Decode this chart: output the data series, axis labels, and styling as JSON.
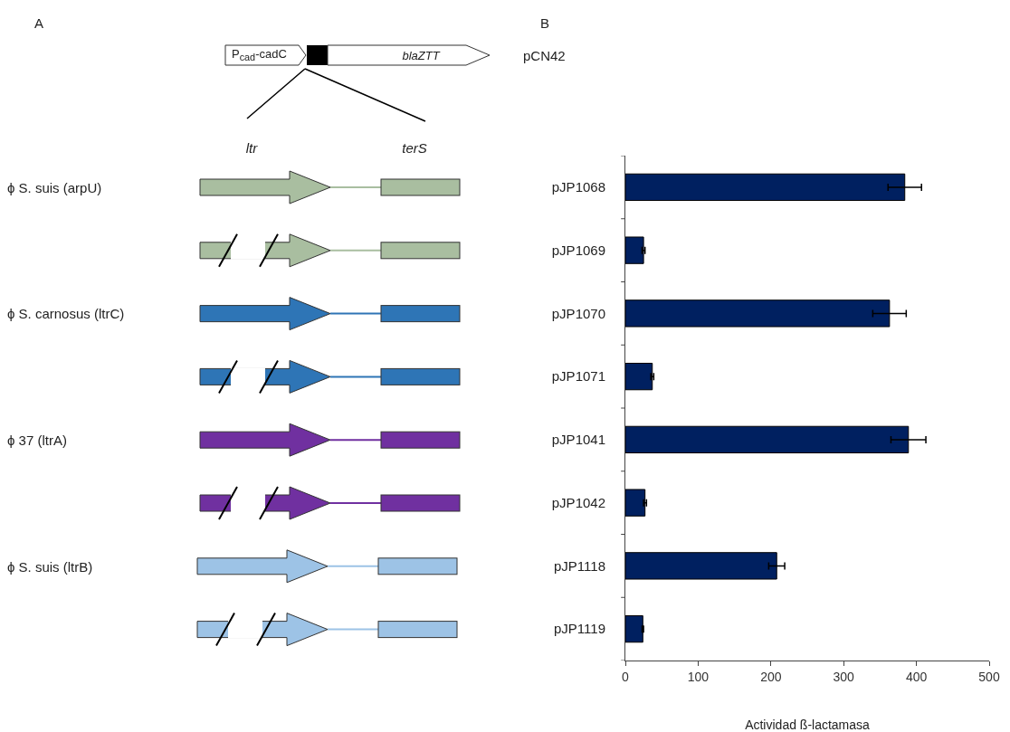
{
  "chart_data": {
    "type": "bar",
    "orientation": "horizontal",
    "xlabel": "Actividad ß-lactamasa",
    "categories": [
      "pJP1068",
      "pJP1069",
      "pJP1070",
      "pJP1071",
      "pJP1041",
      "pJP1042",
      "pJP1118",
      "pJP1119"
    ],
    "values": [
      384,
      25,
      363,
      37,
      389,
      27,
      208,
      24
    ],
    "errors": [
      23,
      2,
      23,
      2,
      24,
      2,
      11,
      1
    ],
    "color": "#002060",
    "xlim": [
      0,
      500
    ],
    "xticks": [
      0,
      100,
      200,
      300,
      400,
      500
    ],
    "grid": false,
    "annotations": [
      "A",
      "B",
      "pCN42",
      "P$_{cad}$-cadC",
      "blaZTT",
      "ltr",
      "terS",
      "ϕ S. suis (arpU)",
      "ϕ S. carnosus (ltrC)",
      "ϕ 37 (ltrA)",
      "ϕ S. suis (ltrB)"
    ]
  }
}
